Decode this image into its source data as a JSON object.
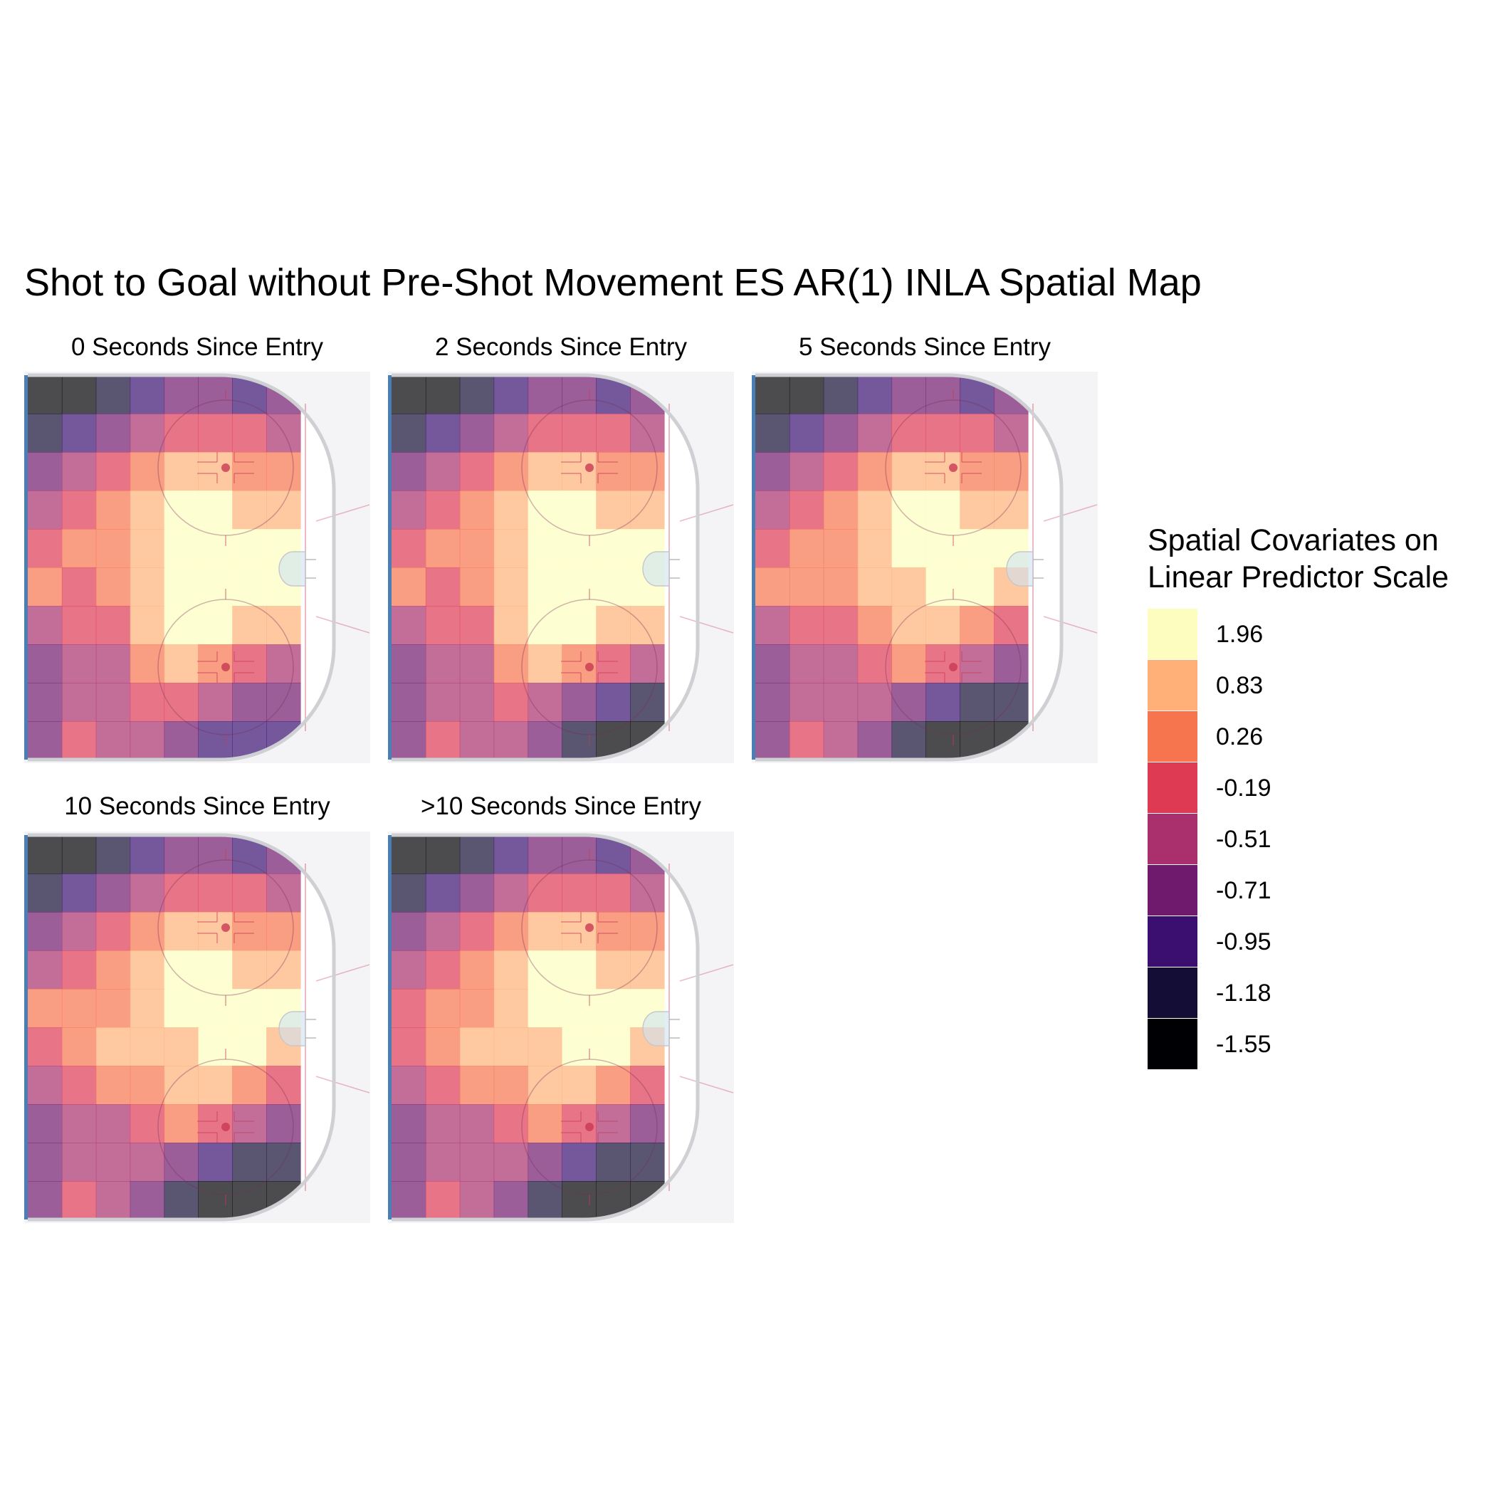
{
  "title": "Shot to Goal without Pre-Shot Movement ES AR(1) INLA Spatial Map",
  "legend": {
    "title_line1": "Spatial Covariates on",
    "title_line2": "Linear Predictor Scale",
    "breaks": [
      {
        "label": "1.96",
        "color": "#fcfdbf"
      },
      {
        "label": "0.83",
        "color": "#feb078"
      },
      {
        "label": "0.26",
        "color": "#f6744e"
      },
      {
        "label": "-0.19",
        "color": "#de3a54"
      },
      {
        "label": "-0.51",
        "color": "#a9306c"
      },
      {
        "label": "-0.71",
        "color": "#701a6e"
      },
      {
        "label": "-0.95",
        "color": "#3b0f70"
      },
      {
        "label": "-1.18",
        "color": "#140d35"
      },
      {
        "label": "-1.55",
        "color": "#000004"
      }
    ]
  },
  "colors": {
    "rink_board": "#cfd0d4",
    "ice_background": "#f4f4f7",
    "blue_line": "#4a7fb5",
    "faceoff_line": "#c83a52",
    "crease": "#cfe3f2"
  },
  "chart_data": [
    {
      "type": "heatmap",
      "panel": "0 Seconds Since Entry",
      "grid": [
        [
          -1.55,
          -1.55,
          -1.18,
          -0.95,
          -0.71,
          -0.71,
          -0.95,
          -0.71
        ],
        [
          -1.18,
          -0.95,
          -0.71,
          -0.51,
          -0.19,
          -0.19,
          -0.19,
          -0.51
        ],
        [
          -0.71,
          -0.51,
          -0.19,
          0.26,
          0.83,
          0.83,
          0.26,
          0.26
        ],
        [
          -0.51,
          -0.19,
          0.26,
          0.83,
          1.96,
          1.96,
          0.83,
          0.83
        ],
        [
          -0.19,
          0.26,
          0.26,
          0.83,
          1.96,
          1.96,
          1.96,
          1.96
        ],
        [
          0.26,
          -0.19,
          0.26,
          0.83,
          1.96,
          1.96,
          1.96,
          1.96
        ],
        [
          -0.51,
          -0.19,
          -0.19,
          0.83,
          1.96,
          1.96,
          0.83,
          0.83
        ],
        [
          -0.71,
          -0.51,
          -0.51,
          0.26,
          0.83,
          0.26,
          -0.19,
          -0.51
        ],
        [
          -0.71,
          -0.51,
          -0.51,
          -0.19,
          -0.19,
          -0.51,
          -0.71,
          -0.71
        ],
        [
          -0.71,
          -0.19,
          -0.51,
          -0.51,
          -0.71,
          -0.95,
          -0.95,
          -0.95
        ]
      ]
    },
    {
      "type": "heatmap",
      "panel": "2 Seconds Since Entry",
      "grid": [
        [
          -1.55,
          -1.55,
          -1.18,
          -0.95,
          -0.71,
          -0.71,
          -0.95,
          -0.71
        ],
        [
          -1.18,
          -0.95,
          -0.71,
          -0.51,
          -0.19,
          -0.19,
          -0.19,
          -0.51
        ],
        [
          -0.71,
          -0.51,
          -0.19,
          0.26,
          0.83,
          0.83,
          0.26,
          0.26
        ],
        [
          -0.51,
          -0.19,
          0.26,
          0.83,
          1.96,
          1.96,
          0.83,
          0.83
        ],
        [
          -0.19,
          0.26,
          0.26,
          0.83,
          1.96,
          1.96,
          1.96,
          1.96
        ],
        [
          0.26,
          -0.19,
          0.26,
          0.83,
          1.96,
          1.96,
          1.96,
          1.96
        ],
        [
          -0.51,
          -0.19,
          -0.19,
          0.83,
          1.96,
          1.96,
          0.83,
          0.83
        ],
        [
          -0.71,
          -0.51,
          -0.51,
          0.26,
          0.83,
          0.26,
          -0.19,
          -0.51
        ],
        [
          -0.71,
          -0.51,
          -0.51,
          -0.19,
          -0.51,
          -0.71,
          -0.95,
          -1.18
        ],
        [
          -0.71,
          -0.19,
          -0.51,
          -0.51,
          -0.71,
          -1.18,
          -1.55,
          -1.55
        ]
      ]
    },
    {
      "type": "heatmap",
      "panel": "5 Seconds Since Entry",
      "grid": [
        [
          -1.55,
          -1.55,
          -1.18,
          -0.95,
          -0.71,
          -0.71,
          -0.95,
          -0.71
        ],
        [
          -1.18,
          -0.95,
          -0.71,
          -0.51,
          -0.19,
          -0.19,
          -0.19,
          -0.51
        ],
        [
          -0.71,
          -0.51,
          -0.19,
          0.26,
          0.83,
          0.83,
          0.26,
          0.26
        ],
        [
          -0.51,
          -0.19,
          0.26,
          0.83,
          1.96,
          1.96,
          0.83,
          0.83
        ],
        [
          -0.19,
          0.26,
          0.26,
          0.83,
          1.96,
          1.96,
          1.96,
          1.96
        ],
        [
          0.26,
          0.26,
          0.26,
          0.83,
          0.83,
          1.96,
          1.96,
          0.83
        ],
        [
          -0.51,
          -0.19,
          -0.19,
          0.26,
          0.83,
          0.83,
          0.26,
          -0.19
        ],
        [
          -0.71,
          -0.51,
          -0.51,
          -0.19,
          0.26,
          -0.19,
          -0.51,
          -0.71
        ],
        [
          -0.71,
          -0.51,
          -0.51,
          -0.51,
          -0.71,
          -0.95,
          -1.18,
          -1.18
        ],
        [
          -0.71,
          -0.19,
          -0.51,
          -0.71,
          -1.18,
          -1.55,
          -1.55,
          -1.55
        ]
      ]
    },
    {
      "type": "heatmap",
      "panel": "10 Seconds Since Entry",
      "grid": [
        [
          -1.55,
          -1.55,
          -1.18,
          -0.95,
          -0.71,
          -0.71,
          -0.95,
          -0.71
        ],
        [
          -1.18,
          -0.95,
          -0.71,
          -0.51,
          -0.19,
          -0.19,
          -0.19,
          -0.51
        ],
        [
          -0.71,
          -0.51,
          -0.19,
          0.26,
          0.83,
          0.83,
          0.26,
          0.26
        ],
        [
          -0.51,
          -0.19,
          0.26,
          0.83,
          1.96,
          1.96,
          0.83,
          0.83
        ],
        [
          0.26,
          0.26,
          0.26,
          0.83,
          1.96,
          1.96,
          1.96,
          1.96
        ],
        [
          -0.19,
          0.26,
          0.83,
          0.83,
          0.83,
          1.96,
          1.96,
          0.83
        ],
        [
          -0.51,
          -0.19,
          0.26,
          0.26,
          0.83,
          0.83,
          0.26,
          -0.19
        ],
        [
          -0.71,
          -0.51,
          -0.51,
          -0.19,
          0.26,
          -0.19,
          -0.51,
          -0.71
        ],
        [
          -0.71,
          -0.51,
          -0.51,
          -0.51,
          -0.71,
          -0.95,
          -1.18,
          -1.18
        ],
        [
          -0.71,
          -0.19,
          -0.51,
          -0.71,
          -1.18,
          -1.55,
          -1.55,
          -1.55
        ]
      ]
    },
    {
      "type": "heatmap",
      "panel": ">10 Seconds Since Entry",
      "grid": [
        [
          -1.55,
          -1.55,
          -1.18,
          -0.95,
          -0.71,
          -0.71,
          -0.95,
          -0.71
        ],
        [
          -1.18,
          -0.95,
          -0.71,
          -0.51,
          -0.19,
          -0.19,
          -0.19,
          -0.51
        ],
        [
          -0.71,
          -0.51,
          -0.19,
          0.26,
          0.83,
          0.83,
          0.26,
          0.26
        ],
        [
          -0.51,
          -0.19,
          0.26,
          0.83,
          1.96,
          1.96,
          0.83,
          0.83
        ],
        [
          -0.19,
          0.26,
          0.26,
          0.83,
          1.96,
          1.96,
          1.96,
          1.96
        ],
        [
          -0.19,
          0.26,
          0.83,
          0.83,
          0.83,
          1.96,
          1.96,
          0.83
        ],
        [
          -0.51,
          -0.19,
          0.26,
          0.26,
          0.83,
          0.83,
          0.26,
          -0.19
        ],
        [
          -0.71,
          -0.51,
          -0.51,
          -0.19,
          0.26,
          -0.19,
          -0.51,
          -0.71
        ],
        [
          -0.71,
          -0.51,
          -0.51,
          -0.51,
          -0.71,
          -0.95,
          -1.18,
          -1.18
        ],
        [
          -0.71,
          -0.19,
          -0.51,
          -0.71,
          -1.18,
          -1.55,
          -1.55,
          -1.55
        ]
      ]
    }
  ]
}
